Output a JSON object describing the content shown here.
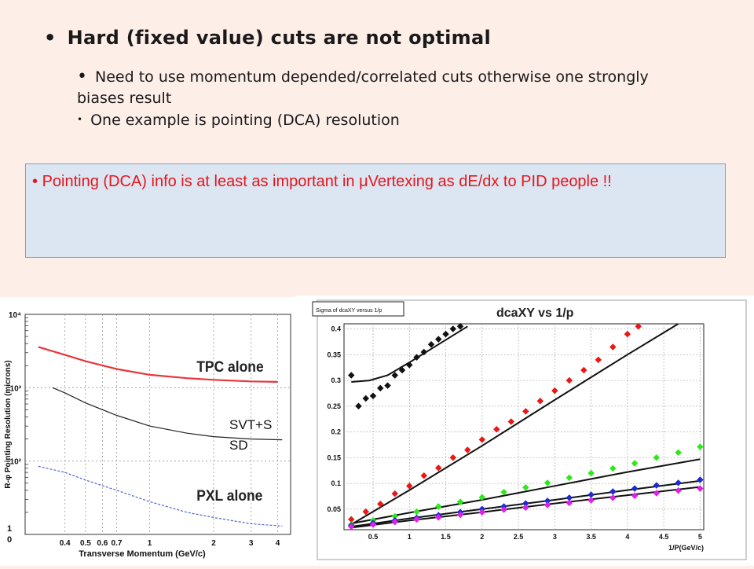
{
  "bullets": {
    "main": "Hard (fixed value) cuts are not optimal",
    "sub1": "Need to use momentum depended/correlated cuts otherwise one strongly biases result",
    "sub2": "One example is pointing (DCA) resolution"
  },
  "callout": {
    "pre": "Pointing (DCA) info is at least as important in ",
    "mu": "μ",
    "post": "Vertexing as dE/dx to PID people !!"
  },
  "colors": {
    "background": "#fdeee8",
    "callout_bg": "#dce6f2",
    "callout_text": "#e8141b"
  },
  "chart_data": [
    {
      "type": "line",
      "title": "",
      "xlabel": "Transverse Momentum (GeV/c)",
      "ylabel": "R-φ Pointing Resolution (microns)",
      "xscale": "log",
      "yscale": "log",
      "xlim": [
        0.26,
        4.6
      ],
      "ylim": [
        10,
        10000
      ],
      "x_ticks": [
        "0.4",
        "0.5",
        "0.6",
        "0.7",
        "1",
        "2",
        "3",
        "4"
      ],
      "y_tick_labels": [
        "10",
        "10²",
        "10³",
        "10⁴"
      ],
      "grid": true,
      "annotations": [
        "TPC alone",
        "SVT+S SD",
        "PXL alone"
      ],
      "series": [
        {
          "name": "TPC alone",
          "color": "#e8363a",
          "style": "solid",
          "x": [
            0.3,
            0.4,
            0.5,
            0.7,
            1.0,
            1.5,
            2.0,
            3.0,
            4.0
          ],
          "y": [
            3600,
            2800,
            2300,
            1800,
            1500,
            1350,
            1280,
            1220,
            1200
          ]
        },
        {
          "name": "SVT+S SD",
          "color": "#222222",
          "style": "solid",
          "x": [
            0.35,
            0.4,
            0.5,
            0.7,
            1.0,
            1.5,
            2.0,
            3.0,
            4.2
          ],
          "y": [
            1000,
            850,
            620,
            420,
            300,
            240,
            215,
            200,
            195
          ]
        },
        {
          "name": "PXL alone",
          "color": "#4a5fd0",
          "style": "dashed",
          "x": [
            0.3,
            0.4,
            0.5,
            0.7,
            1.0,
            1.5,
            2.0,
            3.0,
            4.2
          ],
          "y": [
            85,
            70,
            55,
            40,
            28,
            20,
            17,
            14,
            13
          ]
        }
      ]
    },
    {
      "type": "scatter",
      "title": "dcaXY vs 1/p",
      "legend_box": "Sigma of dcaXY versus 1/p",
      "xlabel": "1/P(GeV/c)",
      "ylabel": "",
      "xlim": [
        0.1,
        5.05
      ],
      "ylim": [
        0.01,
        0.41
      ],
      "x_ticks": [
        0.5,
        1,
        1.5,
        2,
        2.5,
        3,
        3.5,
        4,
        4.5,
        5
      ],
      "y_ticks": [
        0.05,
        0.1,
        0.15,
        0.2,
        0.25,
        0.3,
        0.35,
        0.4
      ],
      "grid": true,
      "series": [
        {
          "color": "#111111",
          "x": [
            0.2,
            0.3,
            0.4,
            0.5,
            0.6,
            0.7,
            0.8,
            0.9,
            1.0,
            1.1,
            1.2,
            1.3,
            1.4,
            1.5,
            1.6,
            1.7
          ],
          "y": [
            0.31,
            0.25,
            0.265,
            0.27,
            0.285,
            0.29,
            0.31,
            0.32,
            0.33,
            0.345,
            0.355,
            0.37,
            0.38,
            0.39,
            0.4,
            0.405
          ],
          "fit": [
            [
              0.2,
              0.297
            ],
            [
              0.45,
              0.3
            ],
            [
              0.7,
              0.31
            ],
            [
              1.0,
              0.335
            ],
            [
              1.4,
              0.37
            ],
            [
              1.8,
              0.405
            ]
          ]
        },
        {
          "color": "#e81818",
          "x": [
            0.2,
            0.4,
            0.6,
            0.8,
            1.0,
            1.2,
            1.4,
            1.6,
            1.8,
            2.0,
            2.2,
            2.4,
            2.6,
            2.8,
            3.0,
            3.2,
            3.4,
            3.6,
            3.8,
            4.0,
            4.15
          ],
          "y": [
            0.03,
            0.045,
            0.06,
            0.08,
            0.095,
            0.115,
            0.13,
            0.15,
            0.165,
            0.185,
            0.205,
            0.22,
            0.24,
            0.26,
            0.28,
            0.3,
            0.32,
            0.34,
            0.365,
            0.39,
            0.405
          ],
          "fit": [
            [
              0.2,
              0.02
            ],
            [
              1.0,
              0.087
            ],
            [
              2.0,
              0.173
            ],
            [
              3.0,
              0.262
            ],
            [
              4.0,
              0.35
            ],
            [
              4.7,
              0.41
            ]
          ]
        },
        {
          "color": "#2ee81a",
          "x": [
            0.2,
            0.5,
            0.8,
            1.1,
            1.4,
            1.7,
            2.0,
            2.3,
            2.6,
            2.9,
            3.2,
            3.5,
            3.8,
            4.1,
            4.4,
            4.7,
            5.0
          ],
          "y": [
            0.02,
            0.028,
            0.036,
            0.045,
            0.055,
            0.064,
            0.073,
            0.083,
            0.092,
            0.101,
            0.111,
            0.12,
            0.129,
            0.139,
            0.15,
            0.16,
            0.171
          ],
          "fit": [
            [
              0.2,
              0.022
            ],
            [
              1.0,
              0.043
            ],
            [
              2.0,
              0.068
            ],
            [
              3.0,
              0.095
            ],
            [
              4.0,
              0.122
            ],
            [
              5.0,
              0.147
            ]
          ]
        },
        {
          "color": "#1e2ad0",
          "x": [
            0.2,
            0.5,
            0.8,
            1.1,
            1.4,
            1.7,
            2.0,
            2.3,
            2.6,
            2.9,
            3.2,
            3.5,
            3.8,
            4.1,
            4.4,
            4.7,
            5.0
          ],
          "y": [
            0.018,
            0.023,
            0.028,
            0.033,
            0.038,
            0.044,
            0.05,
            0.055,
            0.061,
            0.066,
            0.072,
            0.078,
            0.084,
            0.09,
            0.096,
            0.101,
            0.107
          ],
          "fit": [
            [
              0.2,
              0.016
            ],
            [
              1.0,
              0.032
            ],
            [
              2.0,
              0.05
            ],
            [
              3.0,
              0.068
            ],
            [
              4.0,
              0.087
            ],
            [
              5.0,
              0.105
            ]
          ]
        },
        {
          "color": "#e020e8",
          "x": [
            0.2,
            0.5,
            0.8,
            1.1,
            1.4,
            1.7,
            2.0,
            2.3,
            2.6,
            2.9,
            3.2,
            3.5,
            3.8,
            4.1,
            4.4,
            4.7,
            5.0
          ],
          "y": [
            0.016,
            0.02,
            0.025,
            0.03,
            0.034,
            0.039,
            0.044,
            0.049,
            0.053,
            0.058,
            0.062,
            0.067,
            0.072,
            0.076,
            0.081,
            0.086,
            0.09
          ],
          "fit": [
            [
              0.2,
              0.014
            ],
            [
              1.0,
              0.028
            ],
            [
              2.0,
              0.044
            ],
            [
              3.0,
              0.061
            ],
            [
              4.0,
              0.077
            ],
            [
              5.0,
              0.093
            ]
          ]
        }
      ]
    }
  ]
}
